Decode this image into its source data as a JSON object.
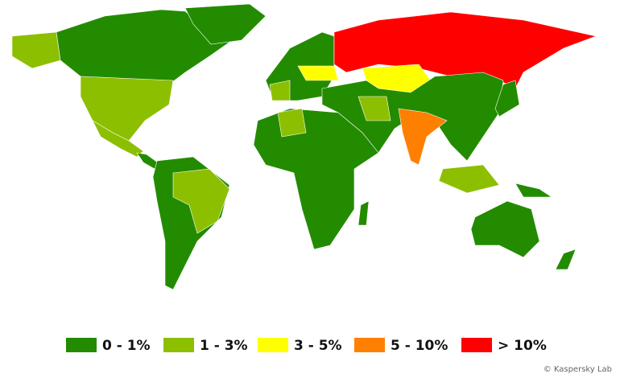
{
  "legend": [
    {
      "label": "0 - 1%",
      "color": "#238b00"
    },
    {
      "label": "1 - 3%",
      "color": "#8cbf00"
    },
    {
      "label": "3 - 5%",
      "color": "#ffff00"
    },
    {
      "label": "5 - 10%",
      "color": "#ff8000"
    },
    {
      "label": "> 10%",
      "color": "#ff0000"
    }
  ],
  "credit": "© Kaspersky Lab"
}
